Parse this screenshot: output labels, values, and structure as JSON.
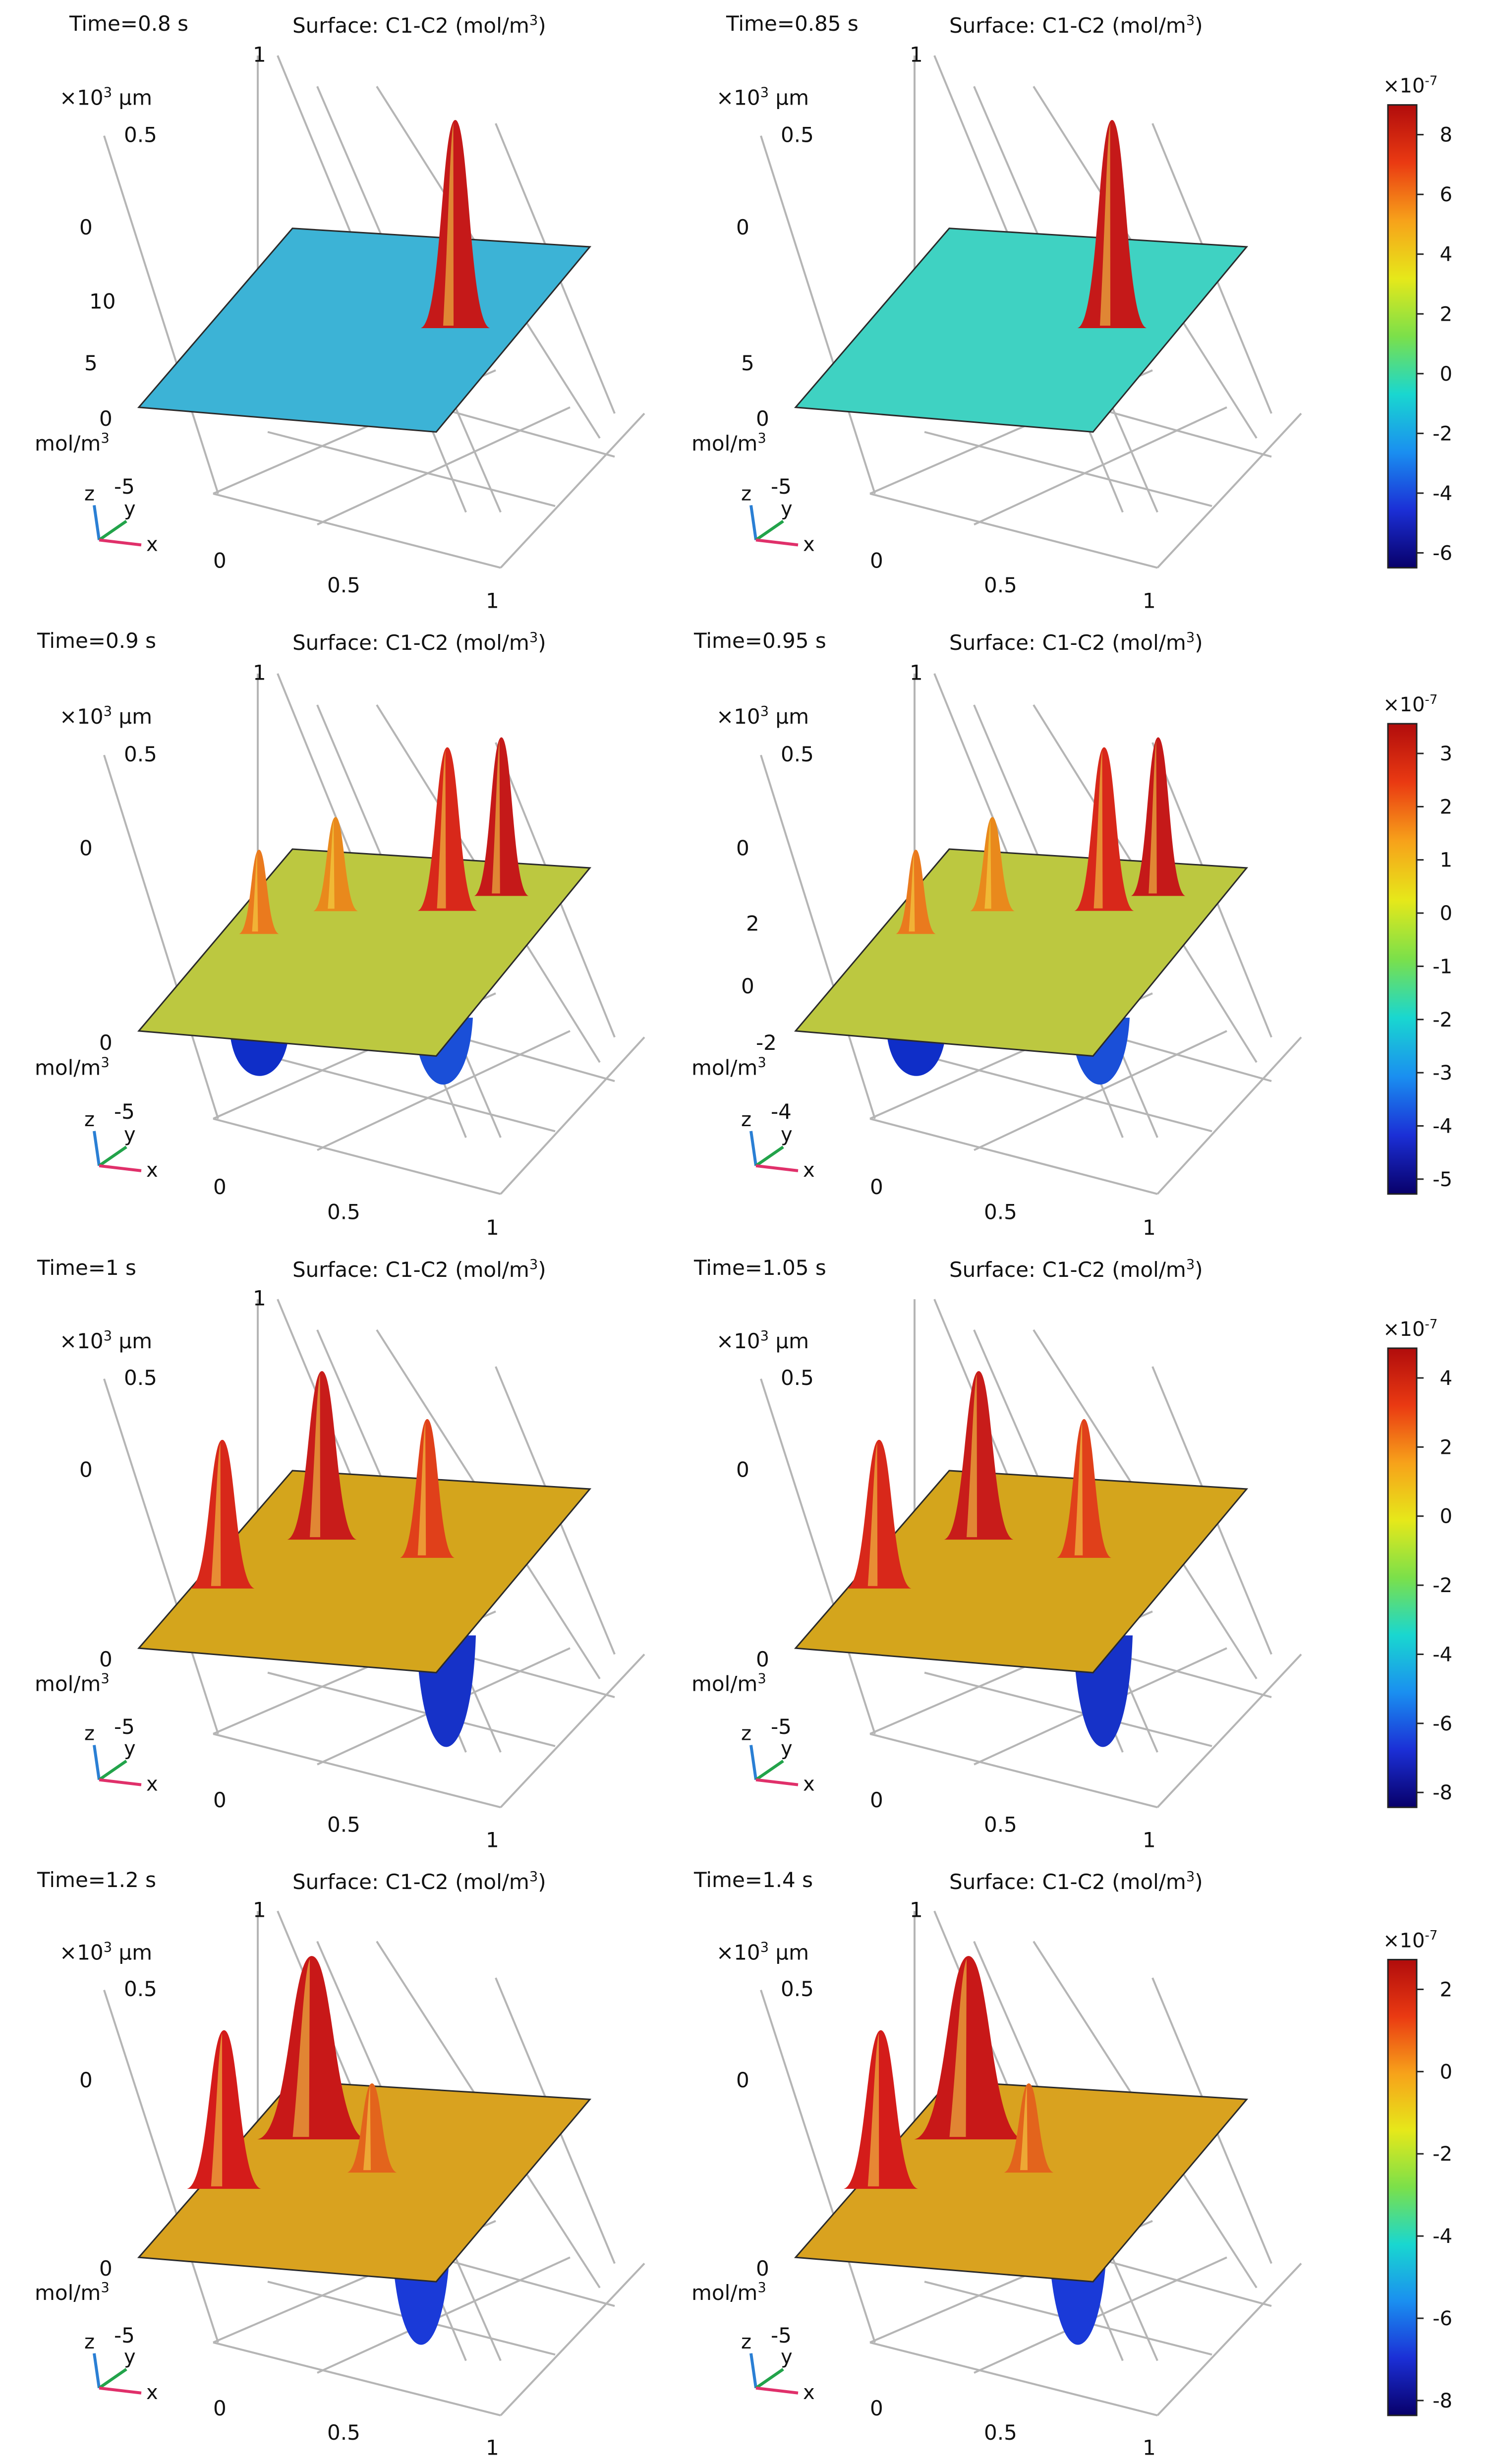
{
  "figure": {
    "surface_title_prefix": "Surface: C1-C2 (mol/m",
    "surface_title_sup": "3",
    "surface_title_suffix": ")",
    "unit_mol_prefix": "mol/m",
    "unit_mol_sup": "3",
    "unit_scale_prefix": "×10",
    "unit_scale_sup": "3",
    "unit_scale_suffix": " μm",
    "axis_x": "x",
    "axis_y": "y",
    "axis_z": "z",
    "colorbar_exponent_base": "×10",
    "colorbar_exponent_power": "-7"
  },
  "colormap": [
    "#08006a",
    "#1b2fd6",
    "#1a8ff0",
    "#19d7d0",
    "#7be04a",
    "#e6e81a",
    "#f7a21a",
    "#ea3a12",
    "#b10c0c"
  ],
  "rows": [
    {
      "colorbar_ticks": [
        "8",
        "6",
        "4",
        "2",
        "0",
        "-2",
        "-4",
        "-6"
      ],
      "panels": [
        {
          "time_label": "Time=0.8 s",
          "axis_ticks": {
            "y_top": "1",
            "y_mid": "0.5",
            "y_zero": "0",
            "z_upper": "10",
            "z_mid": "5",
            "z_zero": "0",
            "z_low": "-5",
            "x_left": "0",
            "x_mid": "0.5",
            "x_right": "1"
          }
        },
        {
          "time_label": "Time=0.85 s",
          "axis_ticks": {
            "y_top": "1",
            "y_mid": "0.5",
            "y_zero": "0",
            "z_upper": "",
            "z_mid": "5",
            "z_zero": "0",
            "z_low": "-5",
            "x_left": "0",
            "x_mid": "0.5",
            "x_right": "1"
          }
        }
      ]
    },
    {
      "colorbar_ticks": [
        "3",
        "2",
        "1",
        "0",
        "-1",
        "-2",
        "-3",
        "-4",
        "-5"
      ],
      "panels": [
        {
          "time_label": "Time=0.9 s",
          "axis_ticks": {
            "y_top": "1",
            "y_mid": "0.5",
            "y_zero": "0",
            "z_upper": "",
            "z_mid": "",
            "z_zero": "0",
            "z_low": "-5",
            "x_left": "0",
            "x_mid": "0.5",
            "x_right": "1"
          }
        },
        {
          "time_label": "Time=0.95 s",
          "axis_ticks": {
            "y_top": "1",
            "y_mid": "0.5",
            "y_zero": "0",
            "z_upper": "2",
            "z_mid": "0",
            "z_zero": "-2",
            "z_low": "-4",
            "x_left": "0",
            "x_mid": "0.5",
            "x_right": "1"
          }
        }
      ]
    },
    {
      "colorbar_ticks": [
        "4",
        "2",
        "0",
        "-2",
        "-4",
        "-6",
        "-8"
      ],
      "panels": [
        {
          "time_label": "Time=1 s",
          "axis_ticks": {
            "y_top": "1",
            "y_mid": "0.5",
            "y_zero": "0",
            "z_upper": "",
            "z_mid": "",
            "z_zero": "0",
            "z_low": "-5",
            "x_left": "0",
            "x_mid": "0.5",
            "x_right": "1"
          }
        },
        {
          "time_label": "Time=1.05 s",
          "axis_ticks": {
            "y_top": "",
            "y_mid": "0.5",
            "y_zero": "0",
            "z_upper": "",
            "z_mid": "",
            "z_zero": "0",
            "z_low": "-5",
            "x_left": "0",
            "x_mid": "0.5",
            "x_right": "1"
          }
        }
      ]
    },
    {
      "colorbar_ticks": [
        "2",
        "0",
        "-2",
        "-4",
        "-6",
        "-8"
      ],
      "panels": [
        {
          "time_label": "Time=1.2 s",
          "axis_ticks": {
            "y_top": "1",
            "y_mid": "0.5",
            "y_zero": "0",
            "z_upper": "",
            "z_mid": "",
            "z_zero": "0",
            "z_low": "-5",
            "x_left": "0",
            "x_mid": "0.5",
            "x_right": "1"
          }
        },
        {
          "time_label": "Time=1.4 s",
          "axis_ticks": {
            "y_top": "1",
            "y_mid": "0.5",
            "y_zero": "0",
            "z_upper": "",
            "z_mid": "",
            "z_zero": "0",
            "z_low": "-5",
            "x_left": "0",
            "x_mid": "0.5",
            "x_right": "1"
          }
        }
      ]
    }
  ]
}
